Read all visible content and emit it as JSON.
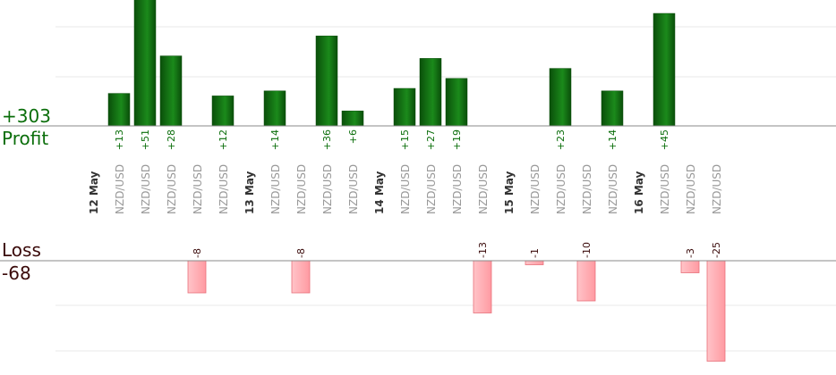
{
  "summary": {
    "profit_total": "+303",
    "profit_label": "Profit",
    "loss_label": "Loss",
    "loss_total": "-68"
  },
  "colors": {
    "profit_bar_dark": "#0a4f0a",
    "profit_bar_light": "#1b8a1b",
    "profit_text": "#0b6e0b",
    "loss_bar": "#ffb3b8",
    "loss_bar_border": "#e8707a",
    "loss_text": "#3a0a0a",
    "axis": "#888888",
    "grid": "#e8e8e8",
    "date_text": "#333333",
    "symbol_text": "#999999"
  },
  "chart_data": {
    "type": "bar",
    "title": "",
    "xlabel": "",
    "ylabel": "",
    "columns": [
      {
        "kind": "date",
        "label": "12 May"
      },
      {
        "kind": "trade",
        "symbol": "NZD/USD",
        "value": 13,
        "label": "+13"
      },
      {
        "kind": "trade",
        "symbol": "NZD/USD",
        "value": 51,
        "label": "+51"
      },
      {
        "kind": "trade",
        "symbol": "NZD/USD",
        "value": 28,
        "label": "+28"
      },
      {
        "kind": "trade",
        "symbol": "NZD/USD",
        "value": -8,
        "label": "-8"
      },
      {
        "kind": "trade",
        "symbol": "NZD/USD",
        "value": 12,
        "label": "+12"
      },
      {
        "kind": "date",
        "label": "13 May"
      },
      {
        "kind": "trade",
        "symbol": "NZD/USD",
        "value": 14,
        "label": "+14"
      },
      {
        "kind": "trade",
        "symbol": "NZD/USD",
        "value": -8,
        "label": "-8"
      },
      {
        "kind": "trade",
        "symbol": "NZD/USD",
        "value": 36,
        "label": "+36"
      },
      {
        "kind": "trade",
        "symbol": "NZD/USD",
        "value": 6,
        "label": "+6"
      },
      {
        "kind": "date",
        "label": "14 May"
      },
      {
        "kind": "trade",
        "symbol": "NZD/USD",
        "value": 15,
        "label": "+15"
      },
      {
        "kind": "trade",
        "symbol": "NZD/USD",
        "value": 27,
        "label": "+27"
      },
      {
        "kind": "trade",
        "symbol": "NZD/USD",
        "value": 19,
        "label": "+19"
      },
      {
        "kind": "trade",
        "symbol": "NZD/USD",
        "value": -13,
        "label": "-13"
      },
      {
        "kind": "date",
        "label": "15 May"
      },
      {
        "kind": "trade",
        "symbol": "NZD/USD",
        "value": -1,
        "label": "-1"
      },
      {
        "kind": "trade",
        "symbol": "NZD/USD",
        "value": 23,
        "label": "+23"
      },
      {
        "kind": "trade",
        "symbol": "NZD/USD",
        "value": -10,
        "label": "-10"
      },
      {
        "kind": "trade",
        "symbol": "NZD/USD",
        "value": 14,
        "label": "+14"
      },
      {
        "kind": "date",
        "label": "16 May"
      },
      {
        "kind": "trade",
        "symbol": "NZD/USD",
        "value": 45,
        "label": "+45"
      },
      {
        "kind": "trade",
        "symbol": "NZD/USD",
        "value": -3,
        "label": "-3"
      },
      {
        "kind": "trade",
        "symbol": "NZD/USD",
        "value": -25,
        "label": "-25"
      }
    ]
  }
}
